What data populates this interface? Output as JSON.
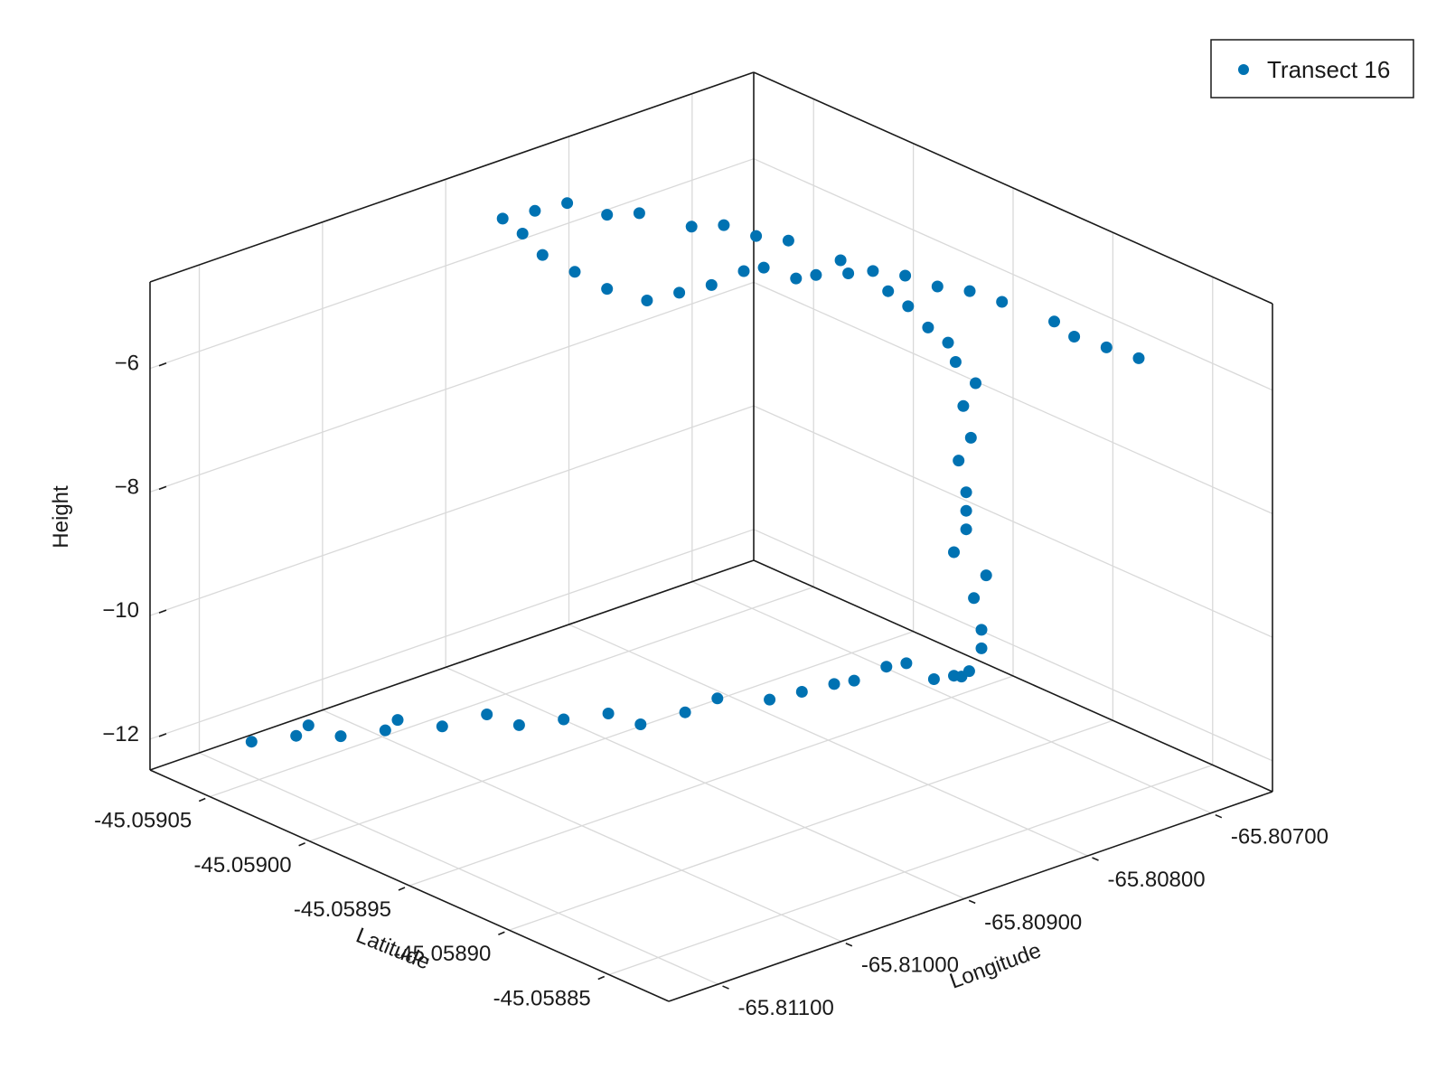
{
  "chart_data": {
    "type": "scatter",
    "dimensions": 3,
    "xlabel": "Latitude",
    "ylabel": "Longitude",
    "zlabel": "Height",
    "xlim": [
      -45.05882,
      -45.05908
    ],
    "ylim": [
      -65.8114,
      -65.8065
    ],
    "zlim": [
      -12.5,
      -4.6
    ],
    "x_ticks": [
      {
        "value": -45.05885,
        "label": "-45.05885"
      },
      {
        "value": -45.0589,
        "label": "-45.05890"
      },
      {
        "value": -45.05895,
        "label": "-45.05895"
      },
      {
        "value": -45.059,
        "label": "-45.05900"
      },
      {
        "value": -45.05905,
        "label": "-45.05905"
      }
    ],
    "y_ticks": [
      {
        "value": -65.811,
        "label": "-65.81100"
      },
      {
        "value": -65.81,
        "label": "-65.81000"
      },
      {
        "value": -65.809,
        "label": "-65.80900"
      },
      {
        "value": -65.808,
        "label": "-65.80800"
      },
      {
        "value": -65.807,
        "label": "-65.80700"
      }
    ],
    "z_ticks": [
      {
        "value": -6,
        "label": "−6"
      },
      {
        "value": -8,
        "label": "−8"
      },
      {
        "value": -10,
        "label": "−10"
      },
      {
        "value": -12,
        "label": "−12"
      }
    ],
    "grid": true,
    "legend": {
      "position": "top-right",
      "entries": [
        "Transect 16"
      ]
    },
    "series": [
      {
        "name": "Transect 16",
        "color": "#0072b2",
        "x": [
          -45.05906,
          -45.05905,
          -45.05905,
          -45.05904,
          -45.05903,
          -45.05903,
          -45.05902,
          -45.05901,
          -45.059,
          -45.05899,
          -45.05898,
          -45.05897,
          -45.05896,
          -45.05895,
          -45.05893,
          -45.05892,
          -45.05891,
          -45.0589,
          -45.05889,
          -45.05888,
          -45.05886,
          -45.05885,
          -45.05884,
          -45.05883,
          -45.05883,
          -45.05883,
          -45.05884,
          -45.05884,
          -45.05885,
          -45.05885,
          -45.05885,
          -45.05885,
          -45.05886,
          -45.05886,
          -45.05887,
          -45.05887,
          -45.05888,
          -45.05889,
          -45.0589,
          -45.05891,
          -45.05892,
          -45.05894,
          -45.05895,
          -45.05896,
          -45.05897,
          -45.05898,
          -45.05899,
          -45.059,
          -45.05901,
          -45.05903,
          -45.05904,
          -45.05905,
          -45.05906,
          -45.05907,
          -45.05906,
          -45.05905,
          -45.05903,
          -45.05902,
          -45.059,
          -45.05899,
          -45.05898,
          -45.05897,
          -45.05895,
          -45.05894,
          -45.05893,
          -45.05892,
          -45.05891,
          -45.0589,
          -45.05888,
          -45.05887,
          -45.05886,
          -45.05885
        ],
        "y": [
          -65.8109,
          -65.8107,
          -65.8106,
          -65.8105,
          -65.8103,
          -65.8102,
          -65.81,
          -65.8098,
          -65.8097,
          -65.8095,
          -65.8093,
          -65.8092,
          -65.809,
          -65.8089,
          -65.8088,
          -65.8087,
          -65.8086,
          -65.8086,
          -65.8085,
          -65.8085,
          -65.8086,
          -65.8086,
          -65.8087,
          -65.8088,
          -65.8087,
          -65.8087,
          -65.8086,
          -65.8085,
          -65.8086,
          -65.8085,
          -65.8085,
          -65.8085,
          -65.8084,
          -65.8083,
          -65.8082,
          -65.8081,
          -65.8081,
          -65.808,
          -65.808,
          -65.808,
          -65.808,
          -65.808,
          -65.8081,
          -65.8081,
          -65.8082,
          -65.8082,
          -65.8083,
          -65.8084,
          -65.8085,
          -65.8085,
          -65.8086,
          -65.8087,
          -65.8087,
          -65.8087,
          -65.8086,
          -65.8085,
          -65.8085,
          -65.8084,
          -65.8083,
          -65.8082,
          -65.8081,
          -65.808,
          -65.8079,
          -65.8078,
          -65.8077,
          -65.8076,
          -65.8075,
          -65.8074,
          -65.8073,
          -65.8073,
          -65.8072,
          -65.8071
        ],
        "z": [
          -12.1,
          -12.0,
          -11.9,
          -12.0,
          -11.9,
          -11.8,
          -11.9,
          -11.7,
          -11.8,
          -11.7,
          -11.6,
          -11.7,
          -11.5,
          -11.2,
          -11.0,
          -10.8,
          -10.6,
          -10.4,
          -10.1,
          -9.9,
          -9.8,
          -9.6,
          -9.4,
          -9.1,
          -8.8,
          -8.5,
          -8.2,
          -7.9,
          -7.6,
          -7.3,
          -7.0,
          -6.7,
          -6.4,
          -6.1,
          -5.8,
          -5.5,
          -5.3,
          -5.2,
          -5.1,
          -4.9,
          -4.8,
          -4.8,
          -4.9,
          -5.1,
          -5.0,
          -5.2,
          -5.5,
          -5.7,
          -5.9,
          -6.0,
          -5.8,
          -5.6,
          -5.4,
          -5.3,
          -5.1,
          -4.9,
          -4.8,
          -4.7,
          -4.7,
          -4.6,
          -4.7,
          -4.7,
          -4.8,
          -4.9,
          -4.9,
          -5.0,
          -5.0,
          -5.1,
          -5.2,
          -5.3,
          -5.4,
          -5.5
        ]
      }
    ]
  }
}
